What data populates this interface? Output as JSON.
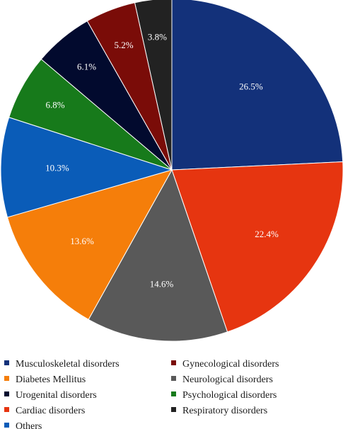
{
  "chart_data": {
    "type": "pie",
    "title": "",
    "slices": [
      {
        "name": "Musculoskeletal disorders",
        "value": 26.5,
        "label": "26.5%",
        "color": "#13317a"
      },
      {
        "name": "Cardiac disorders",
        "value": 22.4,
        "label": "22.4%",
        "color": "#e63510"
      },
      {
        "name": "Neurological disorders",
        "value": 14.6,
        "label": "14.6%",
        "color": "#595959"
      },
      {
        "name": "Diabetes Mellitus",
        "value": 13.6,
        "label": "13.6%",
        "color": "#f57e0a"
      },
      {
        "name": "Others",
        "value": 10.3,
        "label": "10.3%",
        "color": "#0a5cb8"
      },
      {
        "name": "Psychological disorders",
        "value": 6.8,
        "label": "6.8%",
        "color": "#177a1b"
      },
      {
        "name": "Urogenital disorders",
        "value": 6.1,
        "label": "6.1%",
        "color": "#020a2e"
      },
      {
        "name": "Gynecological disorders",
        "value": 5.2,
        "label": "5.2%",
        "color": "#7a0c08"
      },
      {
        "name": "Respiratory disorders",
        "value": 3.8,
        "label": "3.8%",
        "color": "#222222"
      }
    ],
    "start_angle_deg": 0,
    "direction": "clockwise",
    "legend": {
      "placement": "bottom",
      "columns": 2,
      "order": [
        "Musculoskeletal disorders",
        "Gynecological disorders",
        "Diabetes Mellitus",
        "Neurological disorders",
        "Urogenital disorders",
        "Psychological disorders",
        "Cardiac disorders",
        "Respiratory disorders",
        "Others"
      ]
    }
  }
}
